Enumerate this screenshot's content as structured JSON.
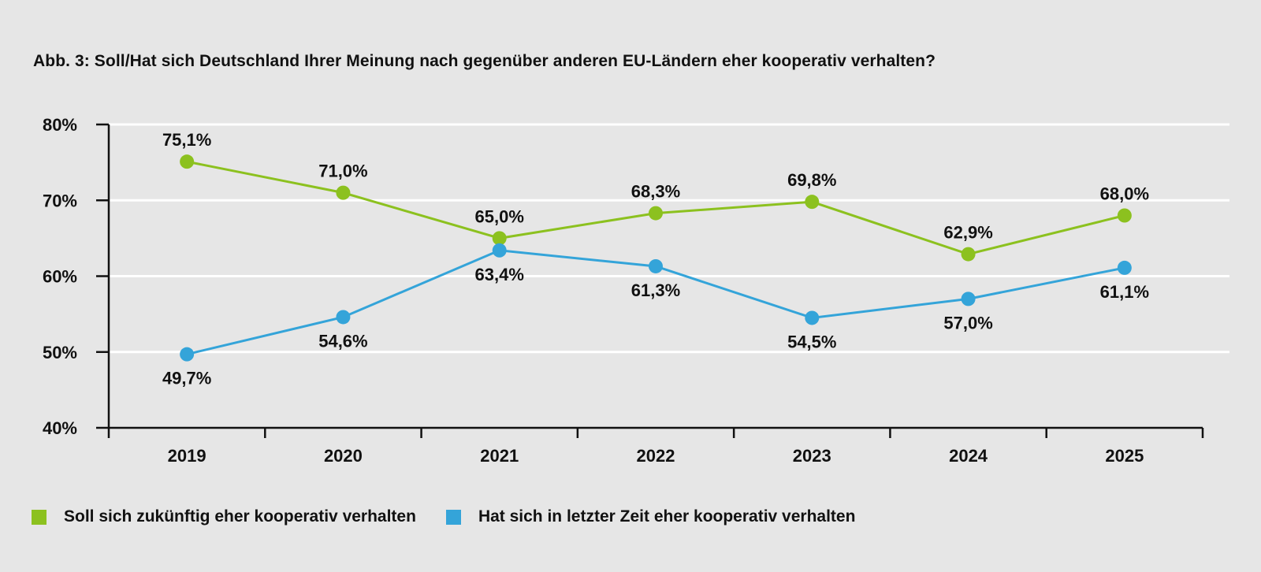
{
  "title": "Abb. 3: Soll/Hat sich Deutschland Ihrer Meinung nach gegenüber anderen EU-Ländern eher kooperativ verhalten?",
  "chart_data": {
    "type": "line",
    "title": "Abb. 3: Soll/Hat sich Deutschland Ihrer Meinung nach gegenüber anderen EU-Ländern eher kooperativ verhalten?",
    "xlabel": "",
    "ylabel": "",
    "categories": [
      "2019",
      "2020",
      "2021",
      "2022",
      "2023",
      "2024",
      "2025"
    ],
    "ylim": [
      40,
      80
    ],
    "yticks": [
      "40%",
      "50%",
      "60%",
      "70%",
      "80%"
    ],
    "grid": "horizontal",
    "legend_position": "bottom-left",
    "series": [
      {
        "name": "Soll sich zukünftig eher kooperativ verhalten",
        "color": "#8cc11f",
        "values": [
          75.1,
          71.0,
          65.0,
          68.3,
          69.8,
          62.9,
          68.0
        ],
        "labels": [
          "75,1%",
          "71,0%",
          "65,0%",
          "68,3%",
          "69,8%",
          "62,9%",
          "68,0%"
        ]
      },
      {
        "name": "Hat sich in letzter Zeit eher kooperativ verhalten",
        "color": "#34a4d9",
        "values": [
          49.7,
          54.6,
          63.4,
          61.3,
          54.5,
          57.0,
          61.1
        ],
        "labels": [
          "49,7%",
          "54,6%",
          "63,4%",
          "61,3%",
          "54,5%",
          "57,0%",
          "61,1%"
        ]
      }
    ]
  }
}
